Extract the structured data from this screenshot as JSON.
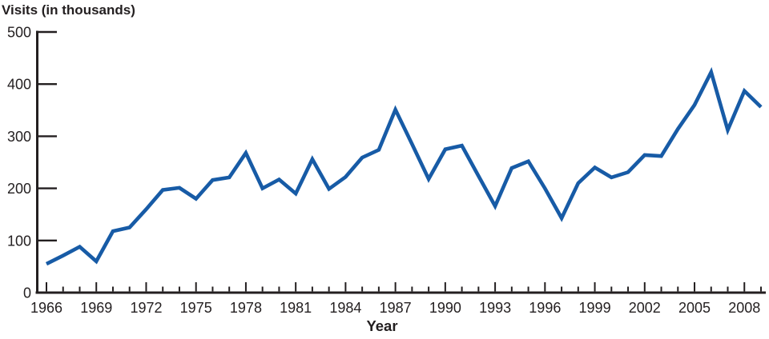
{
  "chart_data": {
    "type": "line",
    "title": "Visits (in thousands)",
    "xlabel": "Year",
    "ylabel": "Visits (in thousands)",
    "series_name": "Visits",
    "x": [
      1966,
      1967,
      1968,
      1969,
      1970,
      1971,
      1972,
      1973,
      1974,
      1975,
      1976,
      1977,
      1978,
      1979,
      1980,
      1981,
      1982,
      1983,
      1984,
      1985,
      1986,
      1987,
      1988,
      1989,
      1990,
      1991,
      1992,
      1993,
      1994,
      1995,
      1996,
      1997,
      1998,
      1999,
      2000,
      2001,
      2002,
      2003,
      2004,
      2005,
      2006,
      2007,
      2008,
      2009
    ],
    "series": [
      {
        "name": "Visits",
        "values": [
          55,
          71,
          88,
          60,
          118,
          125,
          160,
          197,
          201,
          180,
          216,
          221,
          268,
          200,
          217,
          190,
          256,
          199,
          222,
          259,
          274,
          351,
          285,
          218,
          275,
          282,
          224,
          166,
          239,
          252,
          200,
          143,
          210,
          240,
          221,
          231,
          264,
          262,
          314,
          360,
          423,
          312,
          387,
          356
        ]
      }
    ],
    "ylim": [
      0,
      500
    ],
    "yticks": [
      0,
      100,
      200,
      300,
      400,
      500
    ],
    "xtick_labels": [
      1966,
      1969,
      1972,
      1975,
      1978,
      1981,
      1984,
      1987,
      1990,
      1993,
      1996,
      1999,
      2002,
      2005,
      2008
    ],
    "grid": false,
    "legend_position": "none",
    "line_color": "#175ba6",
    "axis_color": "#231f20"
  }
}
